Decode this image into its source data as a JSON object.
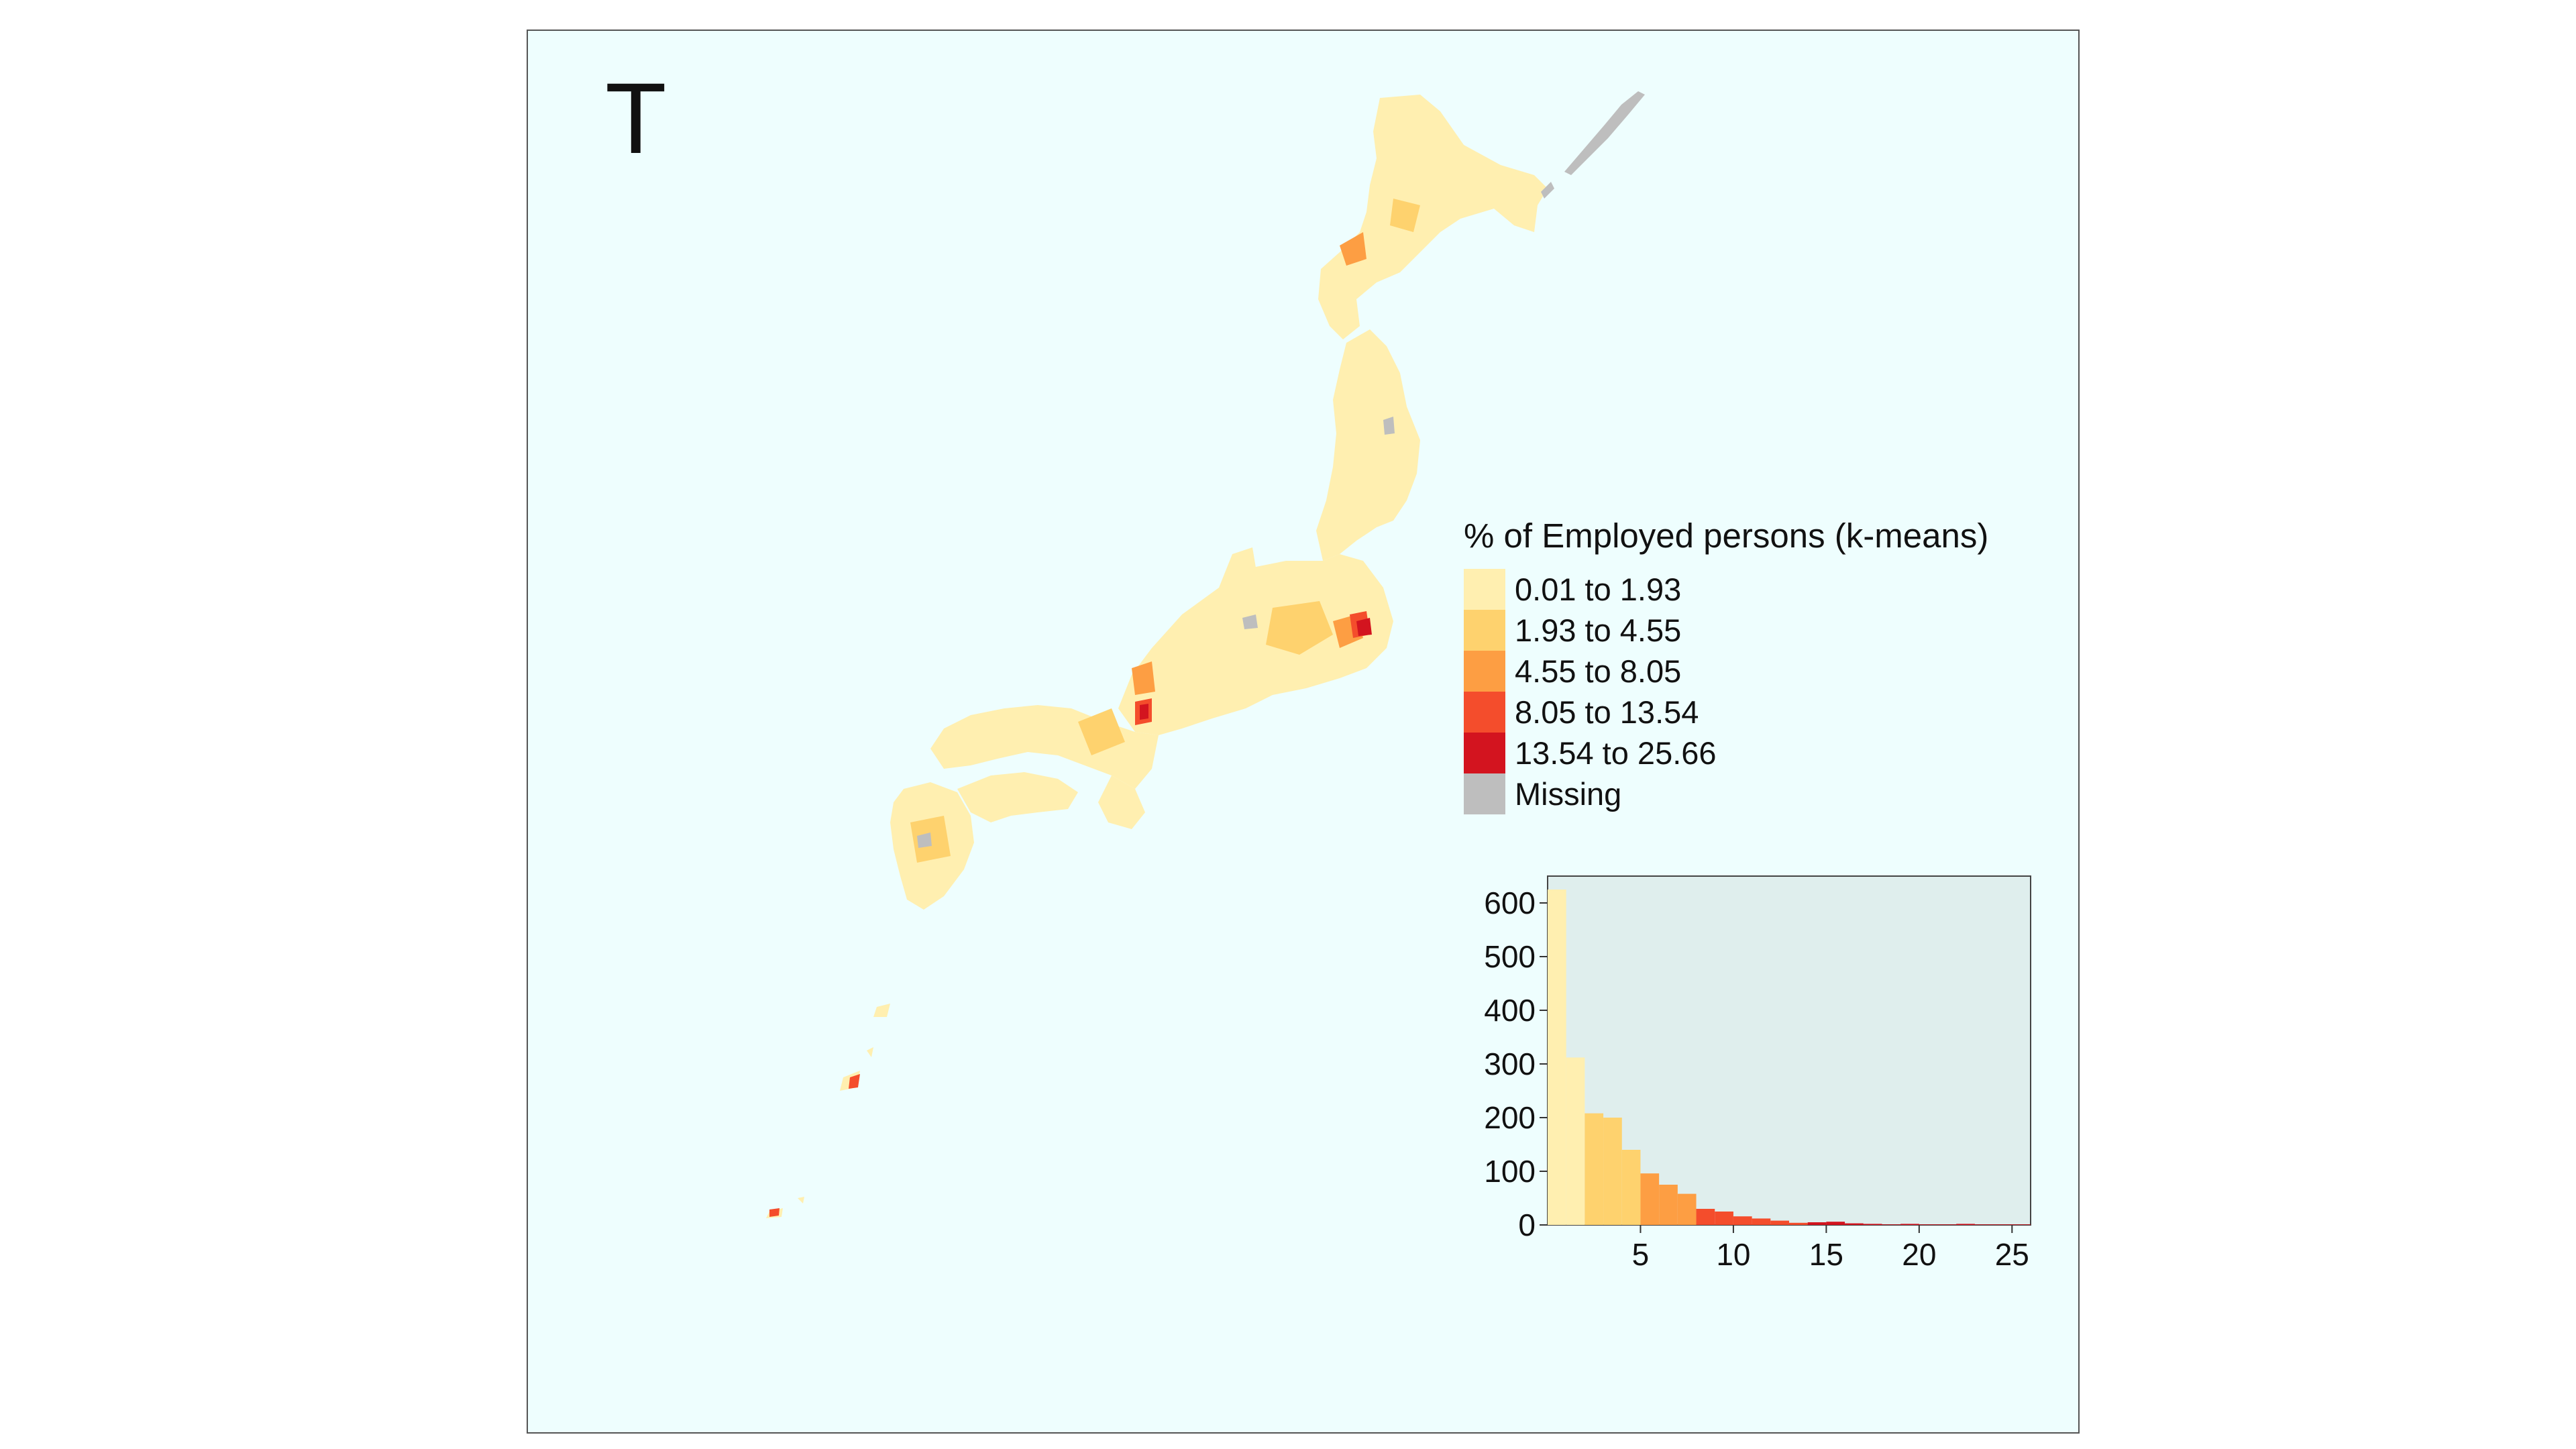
{
  "panel_letter": "T",
  "legend": {
    "title": "% of Employed persons (k-means)",
    "items": [
      {
        "label": "0.01 to 1.93",
        "color": "#ffefb0"
      },
      {
        "label": "1.93 to 4.55",
        "color": "#fed26e"
      },
      {
        "label": "4.55 to 8.05",
        "color": "#fd9e43"
      },
      {
        "label": "8.05 to 13.54",
        "color": "#f44d2c"
      },
      {
        "label": "13.54 to 25.66",
        "color": "#d3141f"
      },
      {
        "label": "Missing",
        "color": "#bebebe"
      }
    ]
  },
  "colors": {
    "panel_background": "#eefefe",
    "histogram_background": "#dfeeed"
  },
  "chart_data": {
    "type": "bar",
    "title": "",
    "xlabel": "",
    "ylabel": "",
    "xlim": [
      0,
      26
    ],
    "ylim": [
      0,
      650
    ],
    "x_ticks": [
      5,
      10,
      15,
      20,
      25
    ],
    "y_ticks": [
      0,
      100,
      200,
      300,
      400,
      500,
      600
    ],
    "bin_width": 1,
    "bins": [
      {
        "x0": 0,
        "x1": 1,
        "count": 625,
        "class": 0
      },
      {
        "x0": 1,
        "x1": 2,
        "count": 312,
        "class": 0
      },
      {
        "x0": 2,
        "x1": 3,
        "count": 208,
        "class": 1
      },
      {
        "x0": 3,
        "x1": 4,
        "count": 200,
        "class": 1
      },
      {
        "x0": 4,
        "x1": 5,
        "count": 140,
        "class": 1
      },
      {
        "x0": 5,
        "x1": 6,
        "count": 96,
        "class": 2
      },
      {
        "x0": 6,
        "x1": 7,
        "count": 75,
        "class": 2
      },
      {
        "x0": 7,
        "x1": 8,
        "count": 58,
        "class": 2
      },
      {
        "x0": 8,
        "x1": 9,
        "count": 30,
        "class": 3
      },
      {
        "x0": 9,
        "x1": 10,
        "count": 25,
        "class": 3
      },
      {
        "x0": 10,
        "x1": 11,
        "count": 16,
        "class": 3
      },
      {
        "x0": 11,
        "x1": 12,
        "count": 12,
        "class": 3
      },
      {
        "x0": 12,
        "x1": 13,
        "count": 8,
        "class": 3
      },
      {
        "x0": 13,
        "x1": 14,
        "count": 4,
        "class": 3
      },
      {
        "x0": 14,
        "x1": 15,
        "count": 5,
        "class": 4
      },
      {
        "x0": 15,
        "x1": 16,
        "count": 6,
        "class": 4
      },
      {
        "x0": 16,
        "x1": 17,
        "count": 3,
        "class": 4
      },
      {
        "x0": 17,
        "x1": 18,
        "count": 2,
        "class": 4
      },
      {
        "x0": 18,
        "x1": 19,
        "count": 1,
        "class": 4
      },
      {
        "x0": 19,
        "x1": 20,
        "count": 2,
        "class": 4
      },
      {
        "x0": 20,
        "x1": 21,
        "count": 1,
        "class": 4
      },
      {
        "x0": 21,
        "x1": 22,
        "count": 1,
        "class": 4
      },
      {
        "x0": 22,
        "x1": 23,
        "count": 2,
        "class": 4
      },
      {
        "x0": 23,
        "x1": 24,
        "count": 1,
        "class": 4
      },
      {
        "x0": 24,
        "x1": 25,
        "count": 1,
        "class": 4
      },
      {
        "x0": 25,
        "x1": 26,
        "count": 1,
        "class": 4
      }
    ]
  }
}
